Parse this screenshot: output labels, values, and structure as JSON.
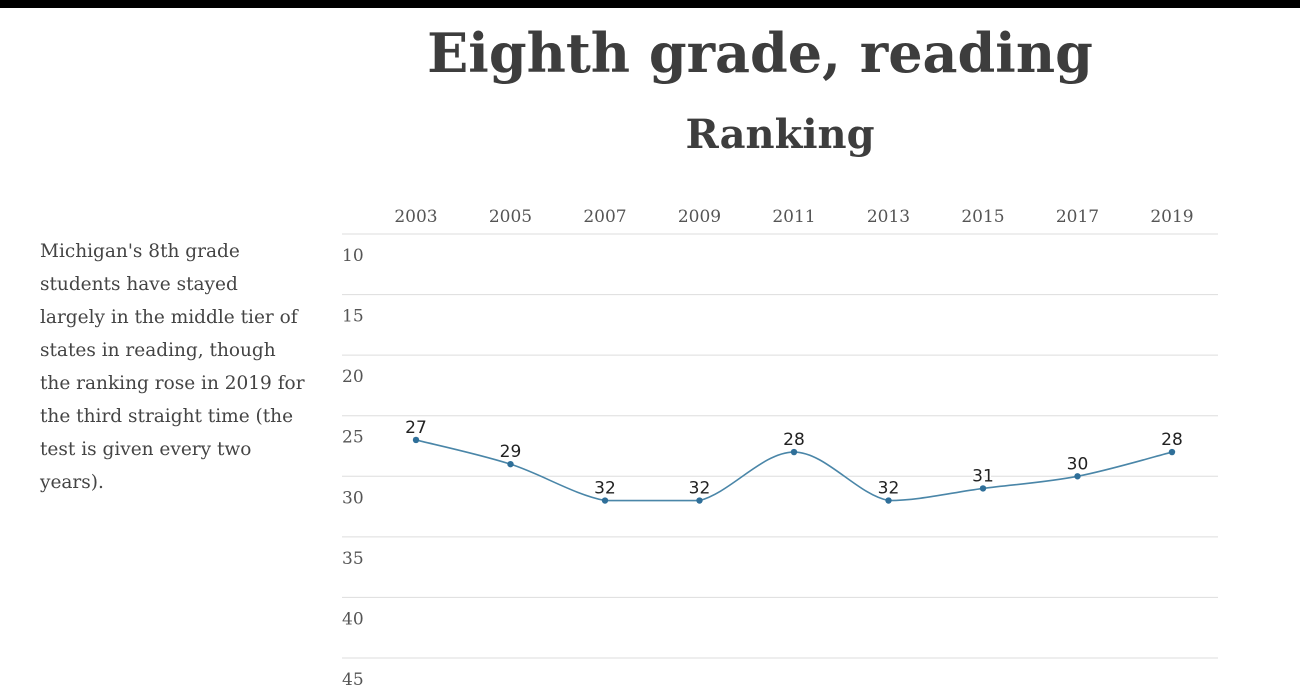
{
  "title": "Eighth grade, reading",
  "subtitle": "Ranking",
  "description": "Michigan's 8th grade students have stayed largely in the middle tier of states in reading, though the ranking rose in 2019 for the third straight time (the test is given every two years).",
  "chart_data": {
    "type": "line",
    "x": [
      "2003",
      "2005",
      "2007",
      "2009",
      "2011",
      "2013",
      "2015",
      "2017",
      "2019"
    ],
    "series": [
      {
        "values": [
          27,
          29,
          32,
          32,
          28,
          32,
          31,
          30,
          28
        ],
        "labels": [
          "27",
          "29",
          "32",
          "32",
          "28",
          "32",
          "31",
          "30",
          "28"
        ]
      }
    ],
    "y_ticks": [
      "10",
      "15",
      "20",
      "25",
      "30",
      "35",
      "40",
      "45"
    ],
    "ylim": [
      10,
      45
    ],
    "y_axis_inverted": true,
    "x_axis_position": "top",
    "grid": true,
    "line_color": "#4a86a8",
    "point_color": "#2f6f99",
    "grid_color": "#dddddd"
  }
}
